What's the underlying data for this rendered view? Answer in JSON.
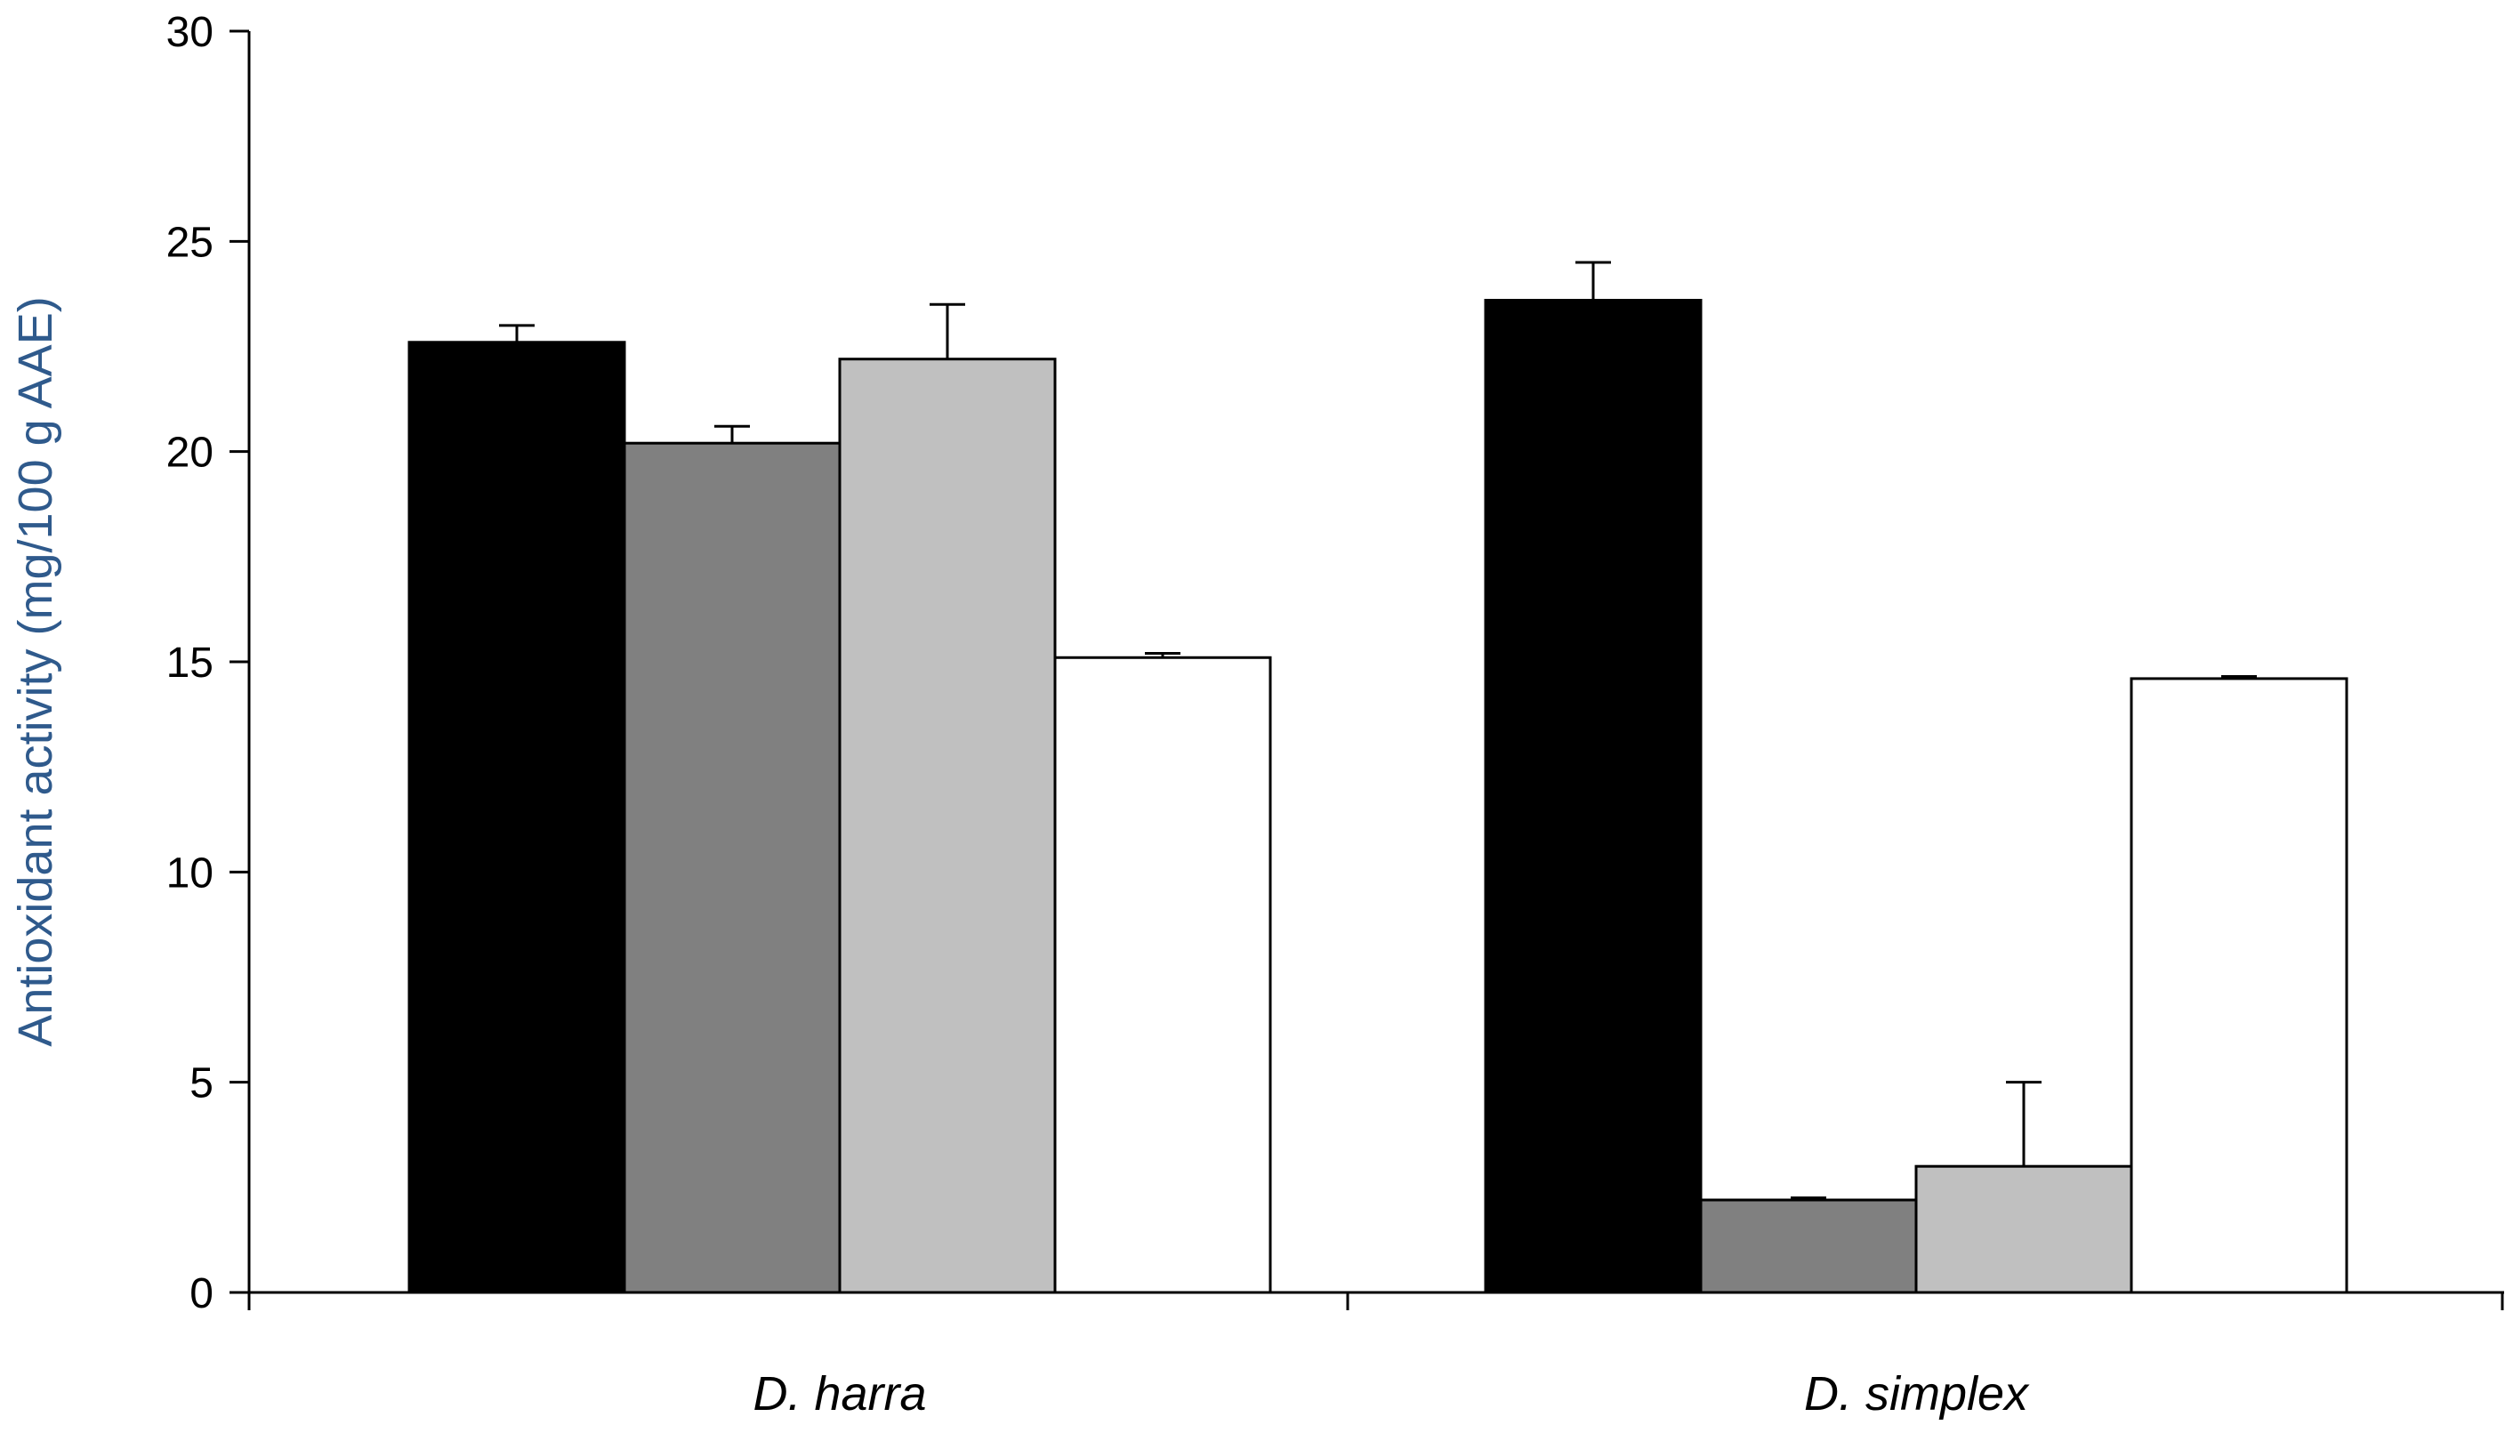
{
  "chart_data": {
    "type": "bar",
    "title": "",
    "xlabel": "",
    "ylabel": "Antioxidant activity (mg/100 g AAE)",
    "ylim": [
      0,
      30
    ],
    "yticks": [
      0,
      5,
      10,
      15,
      20,
      25,
      30
    ],
    "grid": false,
    "legend": "none",
    "categories": [
      "D. harra",
      "D. simplex"
    ],
    "series": [
      {
        "color": "#000000",
        "values": [
          22.6,
          23.6
        ],
        "errors": [
          0.4,
          0.9
        ]
      },
      {
        "color": "#808080",
        "values": [
          20.2,
          2.2
        ],
        "errors": [
          0.4,
          0.05
        ]
      },
      {
        "color": "#c0c0c0",
        "values": [
          22.2,
          3.0
        ],
        "errors": [
          1.3,
          2.0
        ]
      },
      {
        "color": "#ffffff",
        "values": [
          15.1,
          14.6
        ],
        "errors": [
          0.1,
          0.05
        ]
      }
    ]
  }
}
